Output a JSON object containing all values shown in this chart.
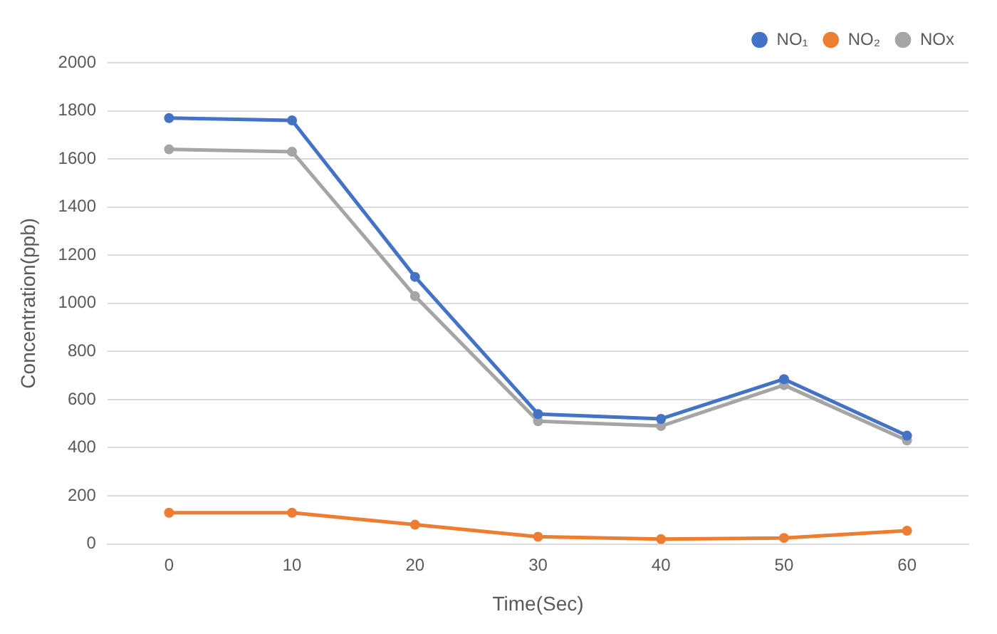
{
  "chart_data": {
    "type": "line",
    "xlabel": "Time(Sec)",
    "ylabel": "Concentration(ppb)",
    "categories": [
      "0",
      "10",
      "20",
      "30",
      "40",
      "50",
      "60"
    ],
    "series": [
      {
        "name": "NO₁",
        "color": "#4472c4",
        "values": [
          1770,
          1760,
          1110,
          540,
          520,
          685,
          450
        ]
      },
      {
        "name": "NO₂",
        "color": "#ed7d31",
        "values": [
          130,
          130,
          80,
          30,
          20,
          25,
          55
        ]
      },
      {
        "name": "NOx",
        "color": "#a5a5a5",
        "values": [
          1640,
          1630,
          1030,
          510,
          490,
          660,
          430
        ]
      }
    ],
    "ylim": [
      0,
      2000
    ],
    "yticks": [
      0,
      200,
      400,
      600,
      800,
      1000,
      1200,
      1400,
      1600,
      1800,
      2000
    ],
    "grid": "y",
    "legend": "top right",
    "marker": "circle",
    "line_style": "solid"
  }
}
